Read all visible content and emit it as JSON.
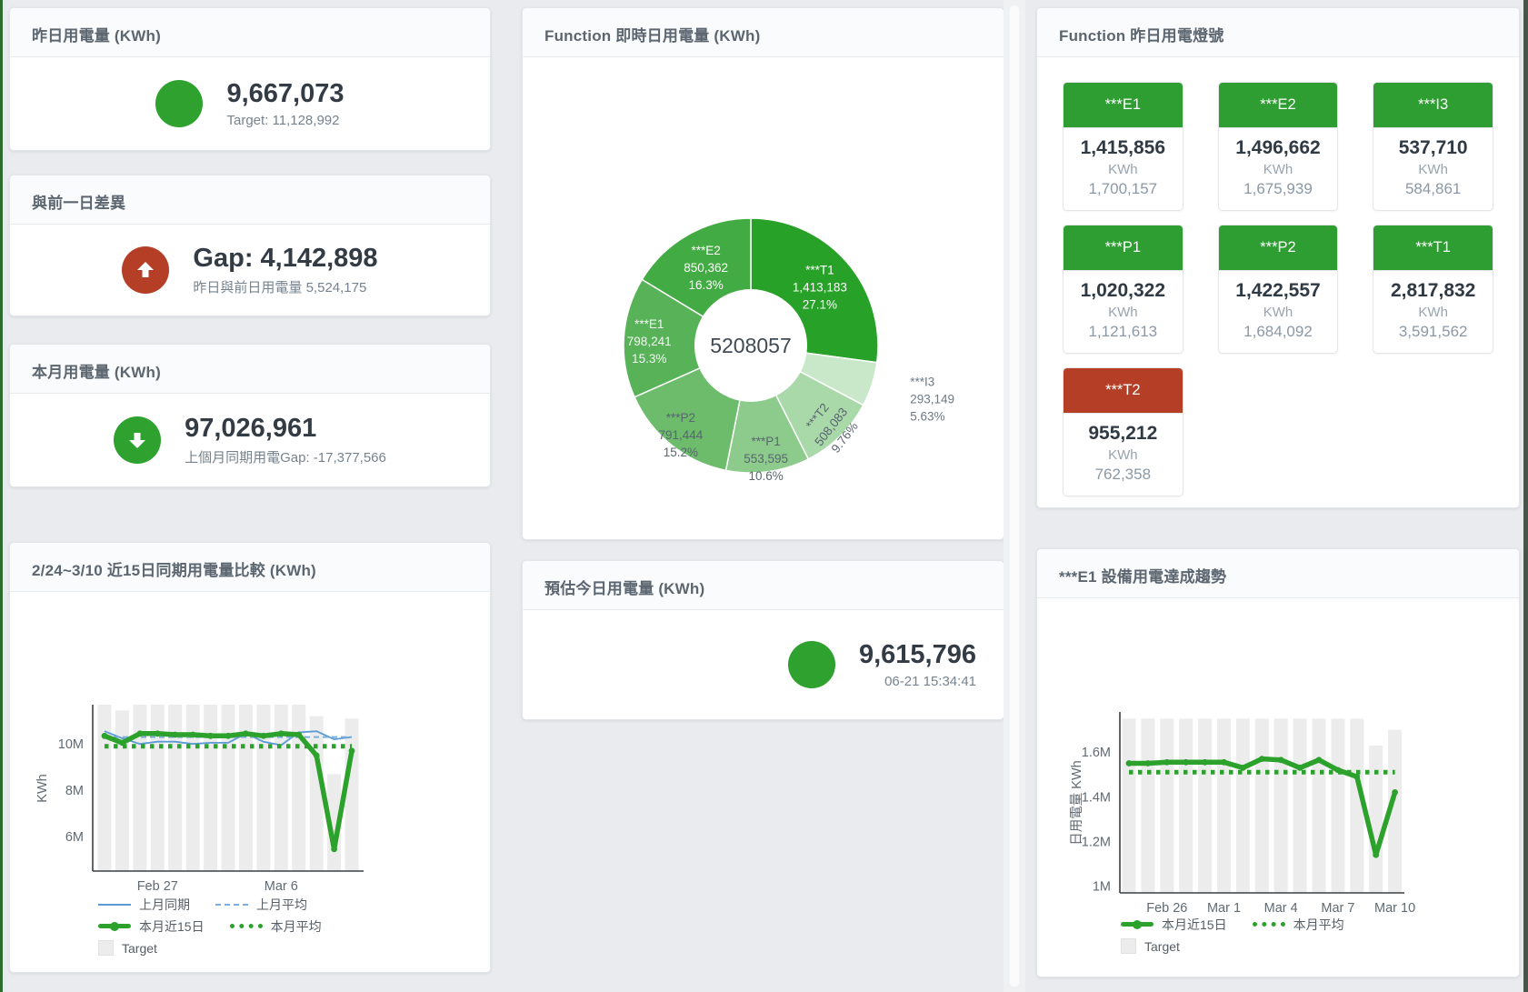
{
  "accent_colors": {
    "green": "#2ea12e",
    "red": "#b43f26",
    "bar_gray": "#ececec",
    "blue": "#5b9bd5"
  },
  "cards": {
    "yesterday": {
      "title": "昨日用電量 (KWh)",
      "value": "9,667,073",
      "subtext": "Target: 11,128,992"
    },
    "gap": {
      "title": "與前一日差異",
      "value": "Gap: 4,142,898",
      "subtext": "昨日與前日用電量 5,524,175"
    },
    "month": {
      "title": "本月用電量 (KWh)",
      "value": "97,026,961",
      "subtext": "上個月同期用電Gap: -17,377,566"
    },
    "estimate": {
      "title": "預估今日用電量 (KWh)",
      "value": "9,615,796",
      "subtext": "06-21 15:34:41"
    }
  },
  "lights_card": {
    "title": "Function 昨日用電燈號",
    "unit": "KWh",
    "tiles": [
      {
        "label": "***E1",
        "value": "1,415,856",
        "target": "1,700,157",
        "status": "green"
      },
      {
        "label": "***E2",
        "value": "1,496,662",
        "target": "1,675,939",
        "status": "green"
      },
      {
        "label": "***I3",
        "value": "537,710",
        "target": "584,861",
        "status": "green"
      },
      {
        "label": "***P1",
        "value": "1,020,322",
        "target": "1,121,613",
        "status": "green"
      },
      {
        "label": "***P2",
        "value": "1,422,557",
        "target": "1,684,092",
        "status": "green"
      },
      {
        "label": "***T1",
        "value": "2,817,832",
        "target": "3,591,562",
        "status": "green"
      },
      {
        "label": "***T2",
        "value": "955,212",
        "target": "762,358",
        "status": "red"
      }
    ]
  },
  "chart_data": [
    {
      "type": "pie",
      "title": "Function 即時日用電量 (KWh)",
      "center_label": "5208057",
      "segments": [
        {
          "name": "***T1",
          "value": "1,413,183",
          "pct": 27.1,
          "pct_label": "27.1%",
          "color": "#27a127",
          "label_color": "#ffffff",
          "label_r": 0.72
        },
        {
          "name": "***I3",
          "value": "293,149",
          "pct": 5.63,
          "pct_label": "5.63%",
          "color": "#c9e8c9",
          "label_color": "#6e7a84",
          "label_outside": true
        },
        {
          "name": "***T2",
          "value": "508,083",
          "pct": 9.76,
          "pct_label": "9.76%",
          "color": "#a9d8a9",
          "label_color": "#5a6570",
          "label_r": 0.88,
          "label_rotate": -52
        },
        {
          "name": "***P1",
          "value": "553,595",
          "pct": 10.6,
          "pct_label": "10.6%",
          "color": "#8ccb8c",
          "label_color": "#5a6570",
          "label_r": 0.88
        },
        {
          "name": "***P2",
          "value": "791,444",
          "pct": 15.2,
          "pct_label": "15.2%",
          "color": "#6cbc6c",
          "label_color": "#5a6570",
          "label_r": 0.88
        },
        {
          "name": "***E1",
          "value": "798,241",
          "pct": 15.3,
          "pct_label": "15.3%",
          "color": "#58b358",
          "label_color": "#f4f8f4",
          "label_r": 0.8
        },
        {
          "name": "***E2",
          "value": "850,362",
          "pct": 16.3,
          "pct_label": "16.3%",
          "color": "#43ab43",
          "label_color": "#ffffff",
          "label_r": 0.72
        }
      ]
    },
    {
      "type": "line",
      "title": "2/24~3/10 近15日同期用電量比較 (KWh)",
      "ylabel": "KWh",
      "ylim": [
        4.5,
        11.7
      ],
      "yticks": [
        {
          "v": 10,
          "label": "10M"
        },
        {
          "v": 8,
          "label": "8M"
        },
        {
          "v": 6,
          "label": "6M"
        }
      ],
      "x_dates": [
        "Feb 24",
        "Feb 25",
        "Feb 26",
        "Feb 27",
        "Feb 28",
        "Mar 1",
        "Mar 2",
        "Mar 3",
        "Mar 4",
        "Mar 5",
        "Mar 6",
        "Mar 7",
        "Mar 8",
        "Mar 9",
        "Mar 10"
      ],
      "xticks": [
        {
          "i": 3,
          "label": "Feb 27"
        },
        {
          "i": 10,
          "label": "Mar 6"
        }
      ],
      "unit": "M KWh",
      "bars": {
        "name": "Target",
        "color": "#ececec",
        "values": [
          11.7,
          11.45,
          11.7,
          11.7,
          11.7,
          11.7,
          11.7,
          11.7,
          11.7,
          11.7,
          11.7,
          11.7,
          11.2,
          8.7,
          11.1
        ]
      },
      "series": [
        {
          "name": "上月同期",
          "style": "thin",
          "color": "#5b9bd5",
          "values": [
            10.55,
            10.25,
            10.0,
            10.1,
            10.1,
            10.0,
            10.05,
            10.05,
            10.45,
            10.1,
            9.95,
            10.5,
            10.55,
            10.2,
            10.3
          ]
        },
        {
          "name": "上月平均",
          "style": "dashed",
          "color": "#7aaede",
          "values": 10.3
        },
        {
          "name": "本月近15日",
          "style": "thick",
          "color": "#2ca22c",
          "values": [
            10.35,
            10.05,
            10.45,
            10.45,
            10.4,
            10.4,
            10.35,
            10.35,
            10.45,
            10.35,
            10.45,
            10.4,
            9.5,
            5.45,
            9.7
          ]
        },
        {
          "name": "本月平均",
          "style": "dotted",
          "color": "#2ca22c",
          "values": 9.9
        }
      ],
      "legend_rows": [
        [
          "上月同期",
          "上月平均"
        ],
        [
          "本月近15日",
          "本月平均"
        ],
        [
          "Target"
        ]
      ]
    },
    {
      "type": "line",
      "title": "***E1 設備用電達成趨勢",
      "ylabel": "日用電量 KWh",
      "ylim": [
        0.97,
        1.78
      ],
      "yticks": [
        {
          "v": 1.6,
          "label": "1.6M"
        },
        {
          "v": 1.4,
          "label": "1.4M"
        },
        {
          "v": 1.2,
          "label": "1.2M"
        },
        {
          "v": 1.0,
          "label": "1M"
        }
      ],
      "x_dates": [
        "Feb 24",
        "Feb 25",
        "Feb 26",
        "Feb 27",
        "Feb 28",
        "Mar 1",
        "Mar 2",
        "Mar 3",
        "Mar 4",
        "Mar 5",
        "Mar 6",
        "Mar 7",
        "Mar 8",
        "Mar 9",
        "Mar 10"
      ],
      "xticks": [
        {
          "i": 2,
          "label": "Feb 26"
        },
        {
          "i": 5,
          "label": "Mar 1"
        },
        {
          "i": 8,
          "label": "Mar 4"
        },
        {
          "i": 11,
          "label": "Mar 7"
        },
        {
          "i": 14,
          "label": "Mar 10"
        }
      ],
      "unit": "M KWh",
      "bars": {
        "name": "Target",
        "color": "#ececec",
        "values": [
          1.75,
          1.75,
          1.75,
          1.75,
          1.75,
          1.75,
          1.75,
          1.75,
          1.75,
          1.75,
          1.75,
          1.75,
          1.75,
          1.63,
          1.7
        ]
      },
      "series": [
        {
          "name": "本月近15日",
          "style": "thick",
          "color": "#2ca22c",
          "values": [
            1.55,
            1.55,
            1.555,
            1.555,
            1.555,
            1.555,
            1.53,
            1.57,
            1.565,
            1.53,
            1.565,
            1.52,
            1.49,
            1.14,
            1.42
          ]
        },
        {
          "name": "本月平均",
          "style": "dotted",
          "color": "#2ca22c",
          "values": 1.51
        }
      ],
      "legend_rows": [
        [
          "本月近15日",
          "本月平均"
        ],
        [
          "Target"
        ]
      ]
    }
  ]
}
